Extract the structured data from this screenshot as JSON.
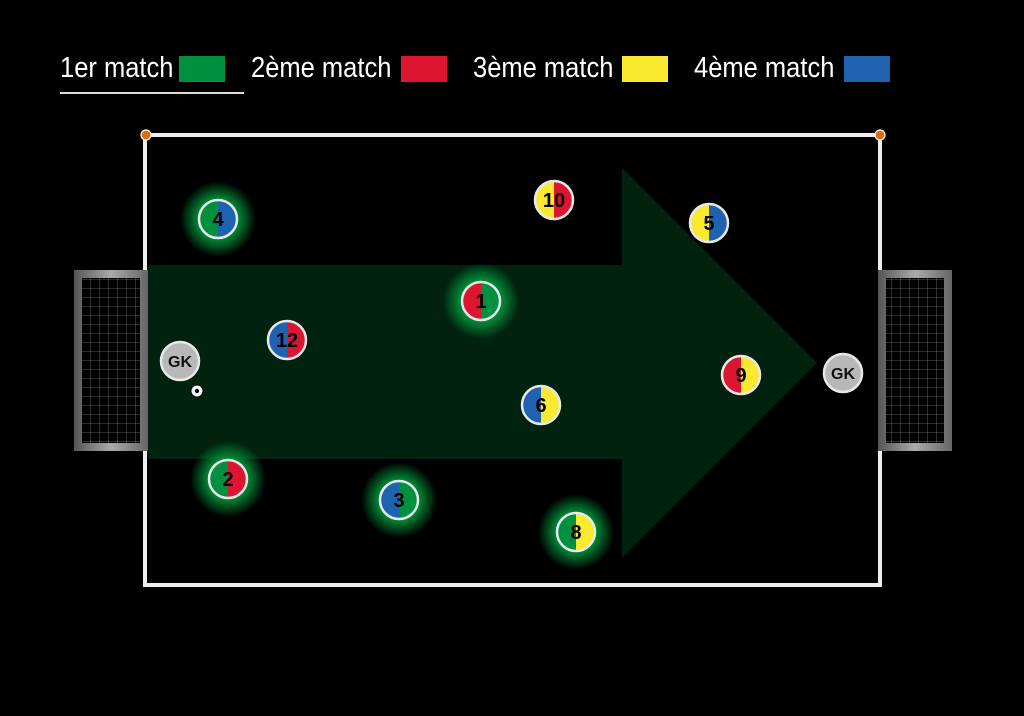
{
  "legend": [
    {
      "label": "1er match",
      "color": "#009140",
      "active": true
    },
    {
      "label": "2ème match",
      "color": "#dc1530",
      "active": false
    },
    {
      "label": "3ème match",
      "color": "#f9e92f",
      "active": false
    },
    {
      "label": "4ème match",
      "color": "#1f63b0",
      "active": false
    }
  ],
  "colors": {
    "green": "#009140",
    "red": "#dc1530",
    "yellow": "#f9e92f",
    "blue": "#1f63b0",
    "arrow": "#00220f",
    "gk": "#b8b8b8",
    "corner": "#e06a10"
  },
  "players": [
    {
      "label": "4",
      "left": "green",
      "right": "blue",
      "glow": true
    },
    {
      "label": "1",
      "left": "red",
      "right": "green",
      "glow": true
    },
    {
      "label": "12",
      "left": "blue",
      "right": "red",
      "glow": false
    },
    {
      "label": "2",
      "left": "green",
      "right": "red",
      "glow": true
    },
    {
      "label": "3",
      "left": "blue",
      "right": "green",
      "glow": true
    },
    {
      "label": "10",
      "left": "yellow",
      "right": "red",
      "glow": false
    },
    {
      "label": "5",
      "left": "yellow",
      "right": "blue",
      "glow": false
    },
    {
      "label": "9",
      "left": "red",
      "right": "yellow",
      "glow": false
    },
    {
      "label": "6",
      "left": "blue",
      "right": "yellow",
      "glow": false
    },
    {
      "label": "8",
      "left": "green",
      "right": "yellow",
      "glow": true
    }
  ],
  "goalkeepers": [
    {
      "label": "GK",
      "side": "left"
    },
    {
      "label": "GK",
      "side": "right"
    }
  ],
  "ball": {
    "icon": "soccer-ball-icon"
  }
}
